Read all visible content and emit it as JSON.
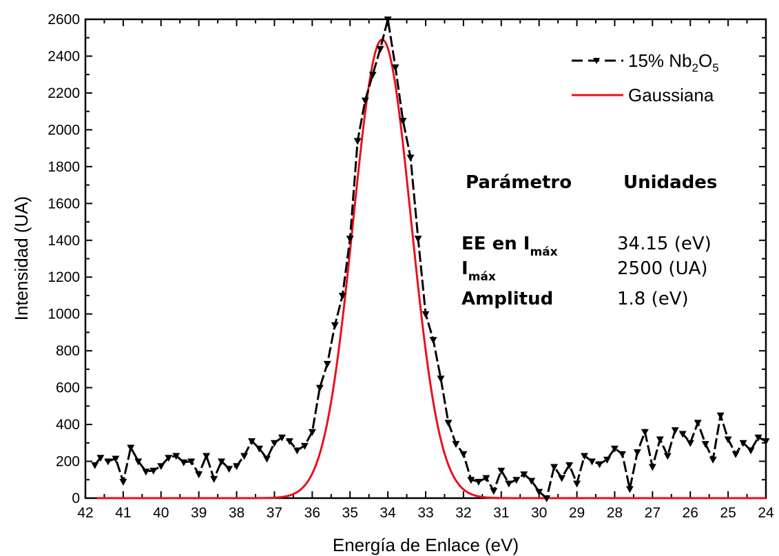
{
  "chart_data": {
    "type": "line",
    "xlabel": "Energía de Enlace (eV)",
    "ylabel": "Intensidad (UA)",
    "xlim": [
      42,
      24
    ],
    "ylim": [
      0,
      2600
    ],
    "x_reversed": true,
    "grid": false,
    "legend_position": "top-right",
    "x_ticks": [
      "42",
      "41",
      "40",
      "39",
      "38",
      "37",
      "36",
      "35",
      "34",
      "33",
      "32",
      "31",
      "30",
      "29",
      "28",
      "27",
      "26",
      "25",
      "24"
    ],
    "y_ticks": [
      "0",
      "200",
      "400",
      "600",
      "800",
      "1000",
      "1200",
      "1400",
      "1600",
      "1800",
      "2000",
      "2200",
      "2400",
      "2600"
    ],
    "series": [
      {
        "name": "15% Nb",
        "name_sub1": "2",
        "name_mid": "O",
        "name_sub2": "5",
        "style": "dash-triangle-down",
        "color": "#000000",
        "x": [
          41.75,
          41.6,
          41.4,
          41.2,
          41.0,
          40.8,
          40.6,
          40.4,
          40.2,
          40.0,
          39.8,
          39.6,
          39.4,
          39.2,
          39.0,
          38.8,
          38.6,
          38.4,
          38.2,
          38.0,
          37.8,
          37.6,
          37.4,
          37.2,
          37.0,
          36.8,
          36.6,
          36.4,
          36.2,
          36.0,
          35.8,
          35.6,
          35.4,
          35.2,
          35.0,
          34.8,
          34.6,
          34.4,
          34.2,
          34.0,
          33.8,
          33.6,
          33.4,
          33.2,
          33.0,
          32.8,
          32.6,
          32.4,
          32.2,
          32.0,
          31.8,
          31.6,
          31.4,
          31.2,
          31.0,
          30.8,
          30.6,
          30.4,
          30.2,
          30.0,
          29.8,
          29.6,
          29.4,
          29.2,
          29.0,
          28.8,
          28.6,
          28.4,
          28.2,
          28.0,
          27.8,
          27.6,
          27.4,
          27.2,
          27.0,
          26.8,
          26.6,
          26.4,
          26.2,
          26.0,
          25.8,
          25.6,
          25.4,
          25.2,
          25.0,
          24.8,
          24.6,
          24.4,
          24.2,
          24.0
        ],
        "y": [
          180,
          220,
          200,
          215,
          90,
          275,
          200,
          145,
          150,
          175,
          220,
          230,
          195,
          200,
          130,
          230,
          105,
          200,
          160,
          175,
          230,
          310,
          270,
          215,
          300,
          330,
          310,
          260,
          285,
          360,
          600,
          730,
          940,
          1100,
          1410,
          1940,
          2160,
          2300,
          2440,
          2600,
          2340,
          2050,
          1850,
          1410,
          1000,
          860,
          650,
          410,
          295,
          240,
          100,
          90,
          110,
          40,
          150,
          80,
          100,
          130,
          95,
          35,
          0,
          170,
          110,
          180,
          80,
          230,
          200,
          185,
          210,
          270,
          240,
          50,
          250,
          360,
          170,
          320,
          230,
          370,
          350,
          300,
          410,
          295,
          210,
          450,
          320,
          240,
          300,
          260,
          330,
          310
        ]
      },
      {
        "name": "Gaussiana",
        "style": "solid",
        "color": "#e8101a",
        "center": 34.15,
        "peak": 2490,
        "fwhm": 1.8
      }
    ]
  },
  "table": {
    "head_param": "Parámetro",
    "head_units": "Unidades",
    "row1_name_a": "EE en I",
    "row1_name_sub": "máx",
    "row1_value": "34.15 (eV)",
    "row2_name_a": "I",
    "row2_name_sub": "máx",
    "row2_value": "2500 (UA)",
    "row3_name": "Amplitud",
    "row3_value": "1.8 (eV)"
  }
}
